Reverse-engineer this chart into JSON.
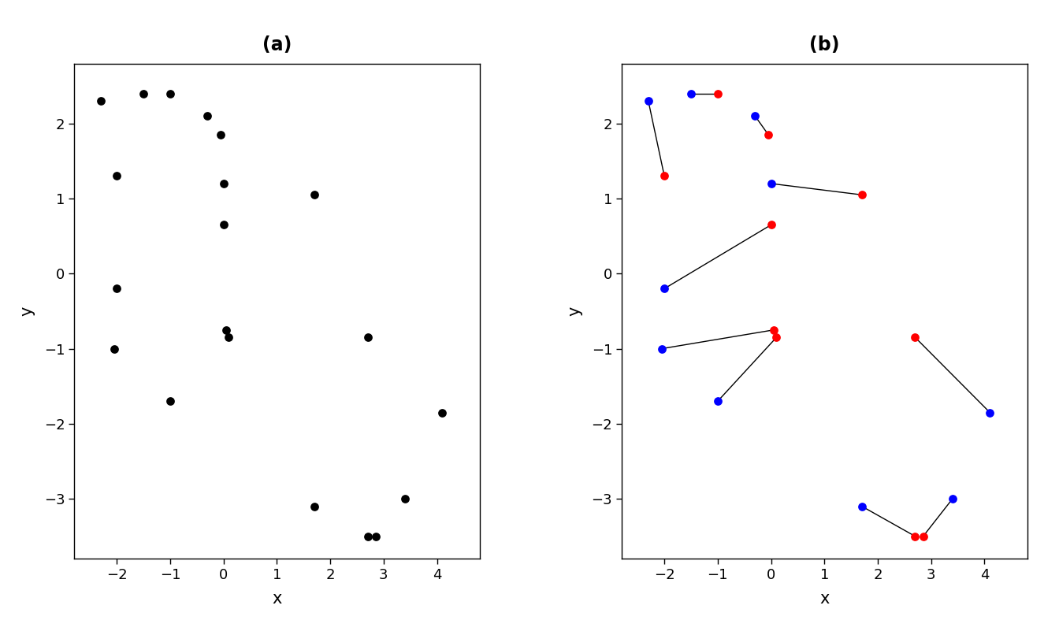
{
  "panel_a_title": "(a)",
  "panel_b_title": "(b)",
  "xlabel": "x",
  "ylabel": "y",
  "xlim": [
    -2.8,
    4.8
  ],
  "ylim": [
    -3.8,
    2.8
  ],
  "xticks": [
    -2,
    -1,
    0,
    1,
    2,
    3,
    4
  ],
  "yticks": [
    -3,
    -2,
    -1,
    0,
    1,
    2
  ],
  "blue_color": "#0000FF",
  "red_color": "#FF0000",
  "black_color": "#000000",
  "background": "#FFFFFF",
  "pairs": [
    {
      "t1": [
        -2.3,
        2.3
      ],
      "t2": [
        -2.0,
        1.3
      ]
    },
    {
      "t1": [
        -1.5,
        2.4
      ],
      "t2": [
        -1.0,
        2.4
      ]
    },
    {
      "t1": [
        -0.3,
        2.1
      ],
      "t2": [
        -0.05,
        1.85
      ]
    },
    {
      "t1": [
        -2.0,
        -0.2
      ],
      "t2": [
        0.0,
        0.65
      ]
    },
    {
      "t1": [
        -2.05,
        -1.0
      ],
      "t2": [
        0.05,
        -0.75
      ]
    },
    {
      "t1": [
        -1.0,
        -1.7
      ],
      "t2": [
        0.1,
        -0.85
      ]
    },
    {
      "t1": [
        0.0,
        1.2
      ],
      "t2": [
        1.7,
        1.05
      ]
    },
    {
      "t1": [
        1.7,
        -3.1
      ],
      "t2": [
        2.7,
        -3.5
      ]
    },
    {
      "t1": [
        3.4,
        -3.0
      ],
      "t2": [
        2.85,
        -3.5
      ]
    },
    {
      "t1": [
        4.1,
        -1.85
      ],
      "t2": [
        2.7,
        -0.85
      ]
    }
  ],
  "dot_size": 60,
  "line_color": "#000000",
  "line_width": 1.0,
  "title_fontsize": 17,
  "label_fontsize": 15,
  "tick_fontsize": 13
}
